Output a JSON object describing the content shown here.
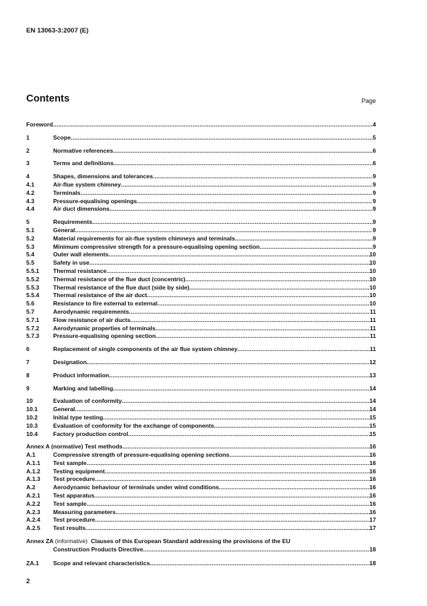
{
  "header": {
    "doc_id": "EN 13063-3:2007 (E)"
  },
  "contents": {
    "title": "Contents",
    "page_label": "Page"
  },
  "groups": [
    [
      {
        "num": "",
        "title": "Foreword",
        "page": "4"
      }
    ],
    [
      {
        "num": "1",
        "title": "Scope",
        "page": "5"
      }
    ],
    [
      {
        "num": "2",
        "title": "Normative references",
        "page": "6"
      }
    ],
    [
      {
        "num": "3",
        "title": "Terms and definitions",
        "page": "6"
      }
    ],
    [
      {
        "num": "4",
        "title": "Shapes, dimensions and tolerances",
        "page": "9"
      },
      {
        "num": "4.1",
        "title": "Air-flue system chimney",
        "page": "9"
      },
      {
        "num": "4.2",
        "title": "Terminals",
        "page": "9"
      },
      {
        "num": "4.3",
        "title": "Pressure-equalising openings",
        "page": "9"
      },
      {
        "num": "4.4",
        "title": "Air duct dimensions",
        "page": "9"
      }
    ],
    [
      {
        "num": "5",
        "title": "Requirements",
        "page": "9"
      },
      {
        "num": "5.1",
        "title": "General",
        "page": "9"
      },
      {
        "num": "5.2",
        "title": "Material requirements for air-flue system chimneys and terminals",
        "page": "9"
      },
      {
        "num": "5.3",
        "title": "Minimum compressive strength for a pressure-equalising opening section",
        "page": "9"
      },
      {
        "num": "5.4",
        "title": "Outer wall elements",
        "page": "10"
      },
      {
        "num": "5.5",
        "title": "Safety in use",
        "page": "10"
      },
      {
        "num": "5.5.1",
        "title": "Thermal resistance",
        "page": "10"
      },
      {
        "num": "5.5.2",
        "title": "Thermal resistance of the flue duct (concentric)",
        "page": "10"
      },
      {
        "num": "5.5.3",
        "title": "Thermal resistance of the flue duct (side by side)",
        "page": "10"
      },
      {
        "num": "5.5.4",
        "title": "Thermal resistance of the air duct",
        "page": "10"
      },
      {
        "num": "5.6",
        "title": "Resistance to fire external to external",
        "page": "10"
      },
      {
        "num": "5.7",
        "title": "Aerodynamic requirements",
        "page": "11"
      },
      {
        "num": "5.7.1",
        "title": "Flow resistance of air ducts",
        "page": "11"
      },
      {
        "num": "5.7.2",
        "title": "Aerodynamic properties of terminals",
        "page": "11"
      },
      {
        "num": "5.7.3",
        "title": "Pressure-equalising opening section",
        "page": "11"
      }
    ],
    [
      {
        "num": "6",
        "title": "Replacement of single components of the air flue system chimney",
        "page": "11"
      }
    ],
    [
      {
        "num": "7",
        "title": "Designation",
        "page": "12"
      }
    ],
    [
      {
        "num": "8",
        "title": "Product information",
        "page": "13"
      }
    ],
    [
      {
        "num": "9",
        "title": "Marking and labelling",
        "page": "14"
      }
    ],
    [
      {
        "num": "10",
        "title": "Evaluation of conformity",
        "page": "14"
      },
      {
        "num": "10.1",
        "title": "General",
        "page": "14"
      },
      {
        "num": "10.2",
        "title": "Initial type testing",
        "page": "15"
      },
      {
        "num": "10.3",
        "title": "Evaluation of conformity for the exchange of components",
        "page": "15"
      },
      {
        "num": "10.4",
        "title": "Factory production control",
        "page": "15"
      }
    ],
    [
      {
        "num": "",
        "title": "Annex A (normative)  Test methods",
        "page": "16"
      },
      {
        "num": "A.1",
        "title": "Compressive strength of pressure-equalising opening sections",
        "page": "16"
      },
      {
        "num": "A.1.1",
        "title": "Test sample",
        "page": "16"
      },
      {
        "num": "A.1.2",
        "title": "Testing equipment",
        "page": "16"
      },
      {
        "num": "A.1.3",
        "title": "Test procedure",
        "page": "16"
      },
      {
        "num": "A.2",
        "title": "Aerodynamic behaviour of terminals under wind conditions",
        "page": "16"
      },
      {
        "num": "A.2.1",
        "title": "Test apparatus",
        "page": "16"
      },
      {
        "num": "A.2.2",
        "title": "Test sample",
        "page": "16"
      },
      {
        "num": "A.2.3",
        "title": "Measuring parameters",
        "page": "16"
      },
      {
        "num": "A.2.4",
        "title": "Test procedure",
        "page": "17"
      },
      {
        "num": "A.2.5",
        "title": "Test results",
        "page": "17"
      }
    ]
  ],
  "annex_za": {
    "label": "Annex ZA",
    "qualifier": "(informative)",
    "title_line1": "Clauses of this European Standard addressing the provisions of the EU",
    "title_line2": "Construction Products Directive",
    "page": "18",
    "sub": {
      "num": "ZA.1",
      "title": "Scope and relevant characteristics",
      "page": "18"
    }
  },
  "footer": {
    "page_number": "2"
  }
}
